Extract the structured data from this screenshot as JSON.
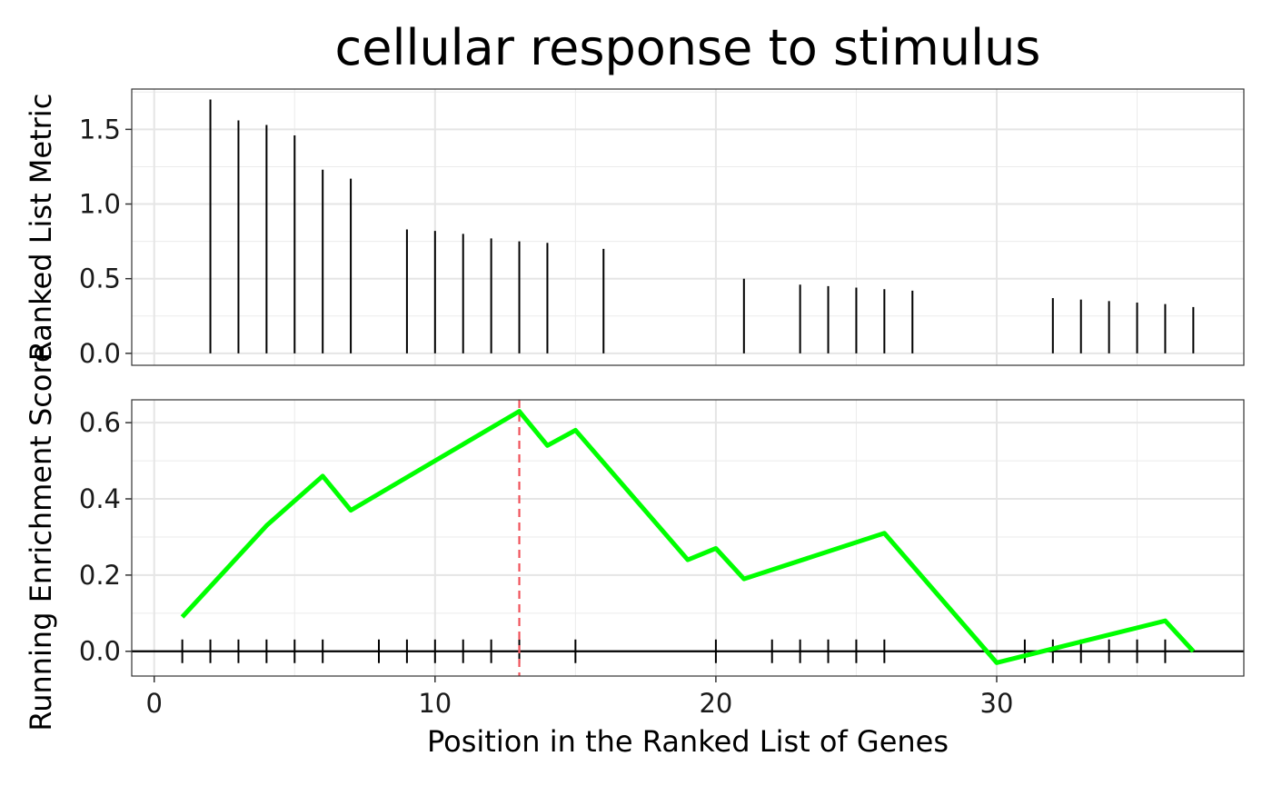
{
  "chart_data": {
    "title": "cellular response to stimulus",
    "xlabel": "Position in the Ranked List of Genes",
    "xlim": [
      -0.8,
      38.8
    ],
    "x_ticks": [
      0,
      10,
      20,
      30
    ],
    "panels": [
      {
        "type": "bar",
        "ylabel": "Ranked List Metric",
        "ylim": [
          -0.08,
          1.77
        ],
        "y_ticks": [
          0.0,
          0.5,
          1.0,
          1.5
        ],
        "y_tick_labels": [
          "0.0",
          "0.5",
          "1.0",
          "1.5"
        ],
        "x": [
          2,
          3,
          4,
          5,
          6,
          7,
          9,
          10,
          11,
          12,
          13,
          14,
          16,
          21,
          23,
          24,
          25,
          26,
          27,
          32,
          33,
          34,
          35,
          36,
          37
        ],
        "values": [
          1.7,
          1.56,
          1.53,
          1.46,
          1.23,
          1.17,
          0.83,
          0.82,
          0.8,
          0.77,
          0.75,
          0.74,
          0.7,
          0.5,
          0.46,
          0.45,
          0.44,
          0.43,
          0.42,
          0.37,
          0.36,
          0.35,
          0.34,
          0.33,
          0.31
        ]
      },
      {
        "type": "line",
        "ylabel": "Running Enrichment Score",
        "ylim": [
          -0.065,
          0.66
        ],
        "y_ticks": [
          0.0,
          0.2,
          0.4,
          0.6
        ],
        "y_tick_labels": [
          "0.0",
          "0.2",
          "0.4",
          "0.6"
        ],
        "color": "#00ff00",
        "x": [
          1,
          4,
          6,
          7,
          13,
          14,
          15,
          19,
          20,
          21,
          26,
          30,
          36,
          37
        ],
        "values": [
          0.09,
          0.33,
          0.46,
          0.37,
          0.63,
          0.54,
          0.58,
          0.24,
          0.27,
          0.19,
          0.31,
          -0.03,
          0.08,
          0.0
        ],
        "hit_positions": [
          1,
          2,
          3,
          4,
          5,
          6,
          8,
          9,
          10,
          11,
          12,
          13,
          15,
          20,
          22,
          23,
          24,
          25,
          26,
          31,
          32,
          33,
          34,
          35,
          36
        ],
        "max_position": 13,
        "max_line_color": "#f0525a"
      }
    ],
    "grid": true
  }
}
